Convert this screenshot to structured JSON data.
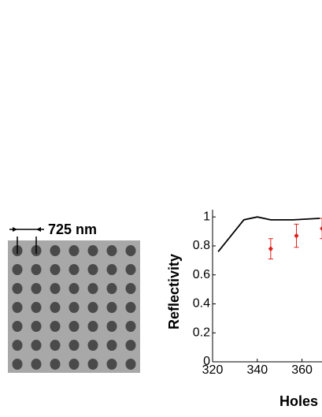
{
  "scale_label": "725 nm",
  "chart_data": {
    "type": "line",
    "ylabel": "Reflectivity",
    "xlabel": "Holes",
    "xlim": [
      320,
      370
    ],
    "ylim": [
      0,
      1.05
    ],
    "xticks": [
      320,
      340,
      360
    ],
    "yticks": [
      0,
      0.2,
      0.4,
      0.6,
      0.8,
      1
    ],
    "series": [
      {
        "color": "#000000",
        "x": [
          322.5,
          334,
          340,
          346,
          356,
          368
        ],
        "values": [
          0.76,
          0.98,
          1.0,
          0.98,
          0.98,
          0.99
        ]
      },
      {
        "color": "#e0201b",
        "x": [
          346,
          357.5,
          369
        ],
        "values": [
          0.78,
          0.87,
          0.92
        ],
        "errors": [
          0.07,
          0.08,
          0.07
        ]
      }
    ]
  }
}
